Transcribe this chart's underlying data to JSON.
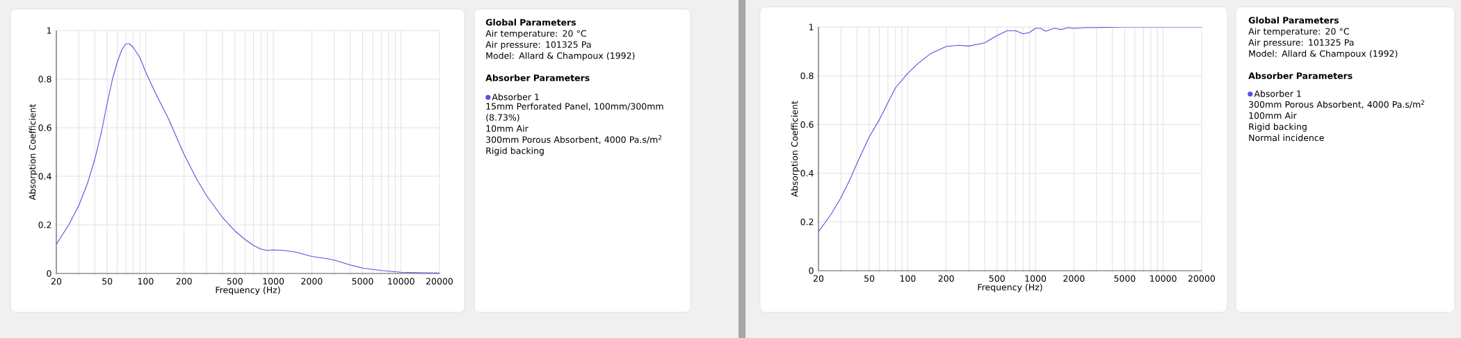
{
  "chart_data": [
    {
      "type": "line",
      "xlabel": "Frequency (Hz)",
      "ylabel": "Absorption Coefficient",
      "log": "x",
      "grid": true,
      "legend": "right",
      "xlim": [
        20,
        20000
      ],
      "ylim": [
        0,
        1
      ],
      "xticks": [
        20,
        {
          "value": 30,
          "label": null
        },
        {
          "value": 40,
          "label": null
        },
        50,
        {
          "value": 60,
          "label": null
        },
        {
          "value": 70,
          "label": null
        },
        {
          "value": 80,
          "label": null
        },
        {
          "value": 90,
          "label": null
        },
        100,
        200,
        {
          "value": 300,
          "label": null
        },
        {
          "value": 400,
          "label": null
        },
        500,
        {
          "value": 600,
          "label": null
        },
        {
          "value": 700,
          "label": null
        },
        {
          "value": 800,
          "label": null
        },
        {
          "value": 900,
          "label": null
        },
        1000,
        2000,
        {
          "value": 3000,
          "label": null
        },
        {
          "value": 4000,
          "label": null
        },
        5000,
        {
          "value": 6000,
          "label": null
        },
        {
          "value": 7000,
          "label": null
        },
        {
          "value": 8000,
          "label": null
        },
        {
          "value": 9000,
          "label": null
        },
        10000,
        20000
      ],
      "yticks": [
        0,
        0.2,
        0.4,
        0.6,
        0.8,
        1
      ],
      "x": [
        20,
        25,
        30,
        35,
        40,
        45,
        50,
        55,
        60,
        65,
        70,
        75,
        80,
        90,
        100,
        120,
        150,
        200,
        250,
        300,
        400,
        500,
        600,
        700,
        800,
        900,
        1000,
        1200,
        1500,
        2000,
        2500,
        3000,
        4000,
        5000,
        7000,
        10000,
        15000,
        20000
      ],
      "series": [
        {
          "name": "Absorber 1",
          "color": "#5050e0",
          "values": [
            0.12,
            0.2,
            0.28,
            0.37,
            0.47,
            0.58,
            0.7,
            0.8,
            0.87,
            0.92,
            0.945,
            0.945,
            0.93,
            0.89,
            0.83,
            0.74,
            0.64,
            0.49,
            0.39,
            0.32,
            0.23,
            0.175,
            0.14,
            0.115,
            0.1,
            0.095,
            0.097,
            0.095,
            0.088,
            0.07,
            0.063,
            0.055,
            0.035,
            0.022,
            0.012,
            0.005,
            0.003,
            0.002
          ]
        }
      ]
    },
    {
      "type": "other",
      "title": "Global Parameters",
      "annotations": [
        "Air temperature: 20 °C",
        "Air pressure: 101325 Pa",
        "Model: Allard & Champoux (1992)",
        "**Absorber Parameters**",
        "15mm Perforated Panel, 100mm/300mm (8.73%)",
        "10mm Air",
        "300mm Porous Absorbent, 4000 Pa.s/m$^{2}$",
        "Rigid backing"
      ]
    },
    {
      "type": "line",
      "xlabel": "Frequency (Hz)",
      "ylabel": "Absorption Coefficient",
      "log": "x",
      "grid": true,
      "legend": "right",
      "xlim": [
        20,
        20000
      ],
      "ylim": [
        0,
        1
      ],
      "xticks": [
        20,
        {
          "value": 30,
          "label": null
        },
        {
          "value": 40,
          "label": null
        },
        50,
        {
          "value": 60,
          "label": null
        },
        {
          "value": 70,
          "label": null
        },
        {
          "value": 80,
          "label": null
        },
        {
          "value": 90,
          "label": null
        },
        100,
        200,
        {
          "value": 300,
          "label": null
        },
        {
          "value": 400,
          "label": null
        },
        500,
        {
          "value": 600,
          "label": null
        },
        {
          "value": 700,
          "label": null
        },
        {
          "value": 800,
          "label": null
        },
        {
          "value": 900,
          "label": null
        },
        1000,
        2000,
        {
          "value": 3000,
          "label": null
        },
        {
          "value": 4000,
          "label": null
        },
        5000,
        {
          "value": 6000,
          "label": null
        },
        {
          "value": 7000,
          "label": null
        },
        {
          "value": 8000,
          "label": null
        },
        {
          "value": 9000,
          "label": null
        },
        10000,
        20000
      ],
      "yticks": [
        0,
        0.2,
        0.4,
        0.6,
        0.8,
        1
      ],
      "x": [
        20,
        25,
        30,
        35,
        40,
        50,
        60,
        70,
        80,
        100,
        120,
        150,
        200,
        250,
        300,
        400,
        500,
        600,
        700,
        800,
        900,
        1000,
        1100,
        1200,
        1400,
        1600,
        1800,
        2000,
        2500,
        3000,
        5000,
        20000
      ],
      "series": [
        {
          "name": "Absorber 1",
          "color": "#5050e0",
          "values": [
            0.16,
            0.23,
            0.3,
            0.37,
            0.44,
            0.55,
            0.62,
            0.69,
            0.75,
            0.81,
            0.85,
            0.89,
            0.92,
            0.925,
            0.922,
            0.935,
            0.965,
            0.985,
            0.985,
            0.972,
            0.978,
            0.995,
            0.995,
            0.983,
            0.995,
            0.99,
            0.998,
            0.995,
            0.998,
            0.998,
            1.0,
            1.0
          ]
        }
      ]
    },
    {
      "type": "other",
      "title": "Global Parameters",
      "annotations": [
        "Air temperature: 20 °C",
        "Air pressure: 101325 Pa",
        "Model: Allard & Champoux (1992)",
        "**Absorber Parameters**",
        "300mm Porous Absorbent, 4000 Pa.s/m$^{2}$",
        "100mm Air",
        "Rigid backing",
        "Normal incidence"
      ]
    }
  ]
}
